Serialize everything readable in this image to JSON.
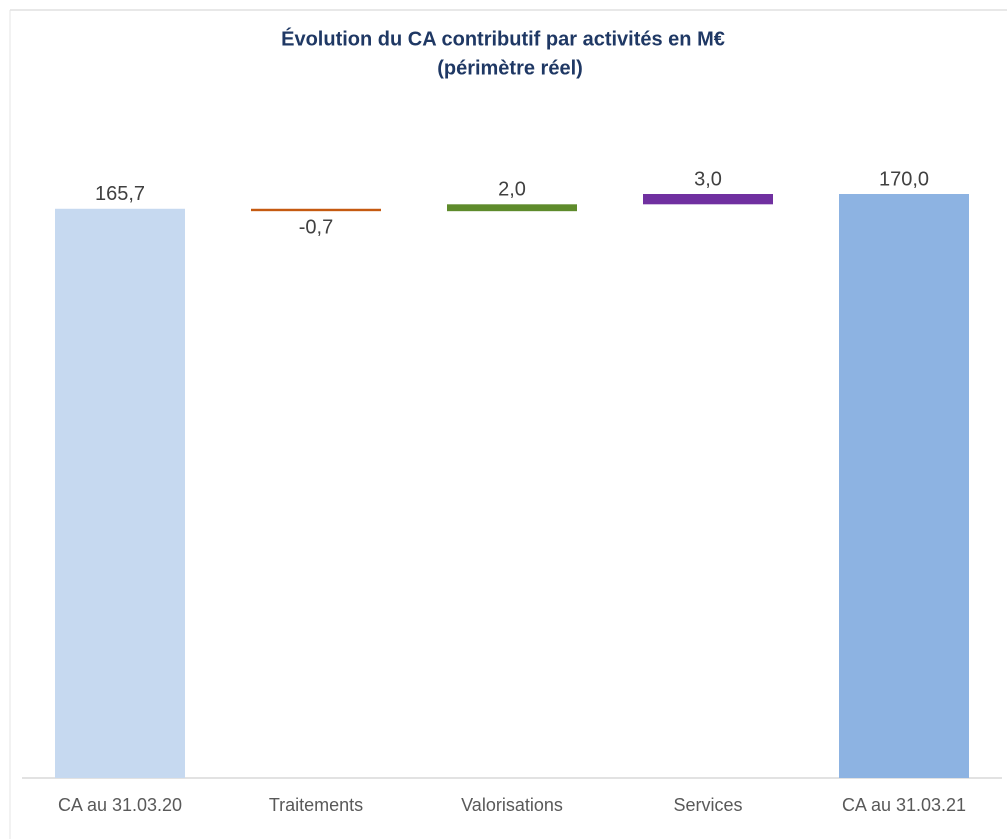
{
  "chart_data": {
    "type": "waterfall",
    "title": "Évolution du CA contributif par activités en M€",
    "subtitle": "(périmètre réel)",
    "categories": [
      "CA au 31.03.20",
      "Traitements",
      "Valorisations",
      "Services",
      "CA au 31.03.21"
    ],
    "values": [
      165.7,
      -0.7,
      2.0,
      3.0,
      170.0
    ],
    "value_labels": [
      "165,7",
      "-0,7",
      "2,0",
      "3,0",
      "170,0"
    ],
    "colors": [
      "#c6d9f0",
      "#c55a11",
      "#5e8b2b",
      "#7030a0",
      "#8db3e2"
    ]
  }
}
